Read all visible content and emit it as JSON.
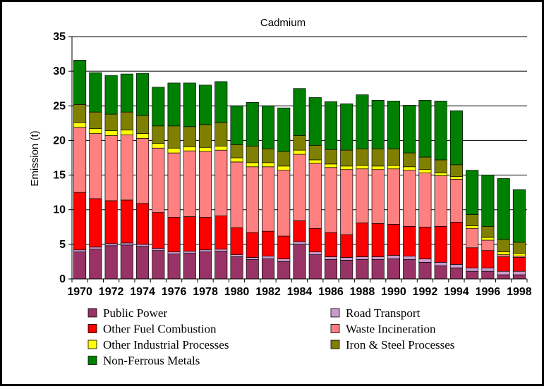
{
  "chart_data": {
    "type": "bar",
    "stacked": true,
    "title": "Cadmium",
    "ylabel": "Emission (t)",
    "xlabel": "",
    "ylim": [
      0,
      35
    ],
    "yticks": [
      0,
      5,
      10,
      15,
      20,
      25,
      30,
      35
    ],
    "grid": true,
    "legend_position": "bottom",
    "categories": [
      "1970",
      "1971",
      "1972",
      "1973",
      "1974",
      "1975",
      "1976",
      "1977",
      "1978",
      "1979",
      "1980",
      "1981",
      "1982",
      "1983",
      "1984",
      "1985",
      "1986",
      "1987",
      "1988",
      "1989",
      "1990",
      "1991",
      "1992",
      "1993",
      "1994",
      "1995",
      "1996",
      "1997",
      "1998"
    ],
    "x_tick_labels": [
      "1970",
      "1972",
      "1974",
      "1976",
      "1978",
      "1980",
      "1982",
      "1984",
      "1986",
      "1988",
      "1990",
      "1992",
      "1994",
      "1996",
      "1998"
    ],
    "series": [
      {
        "name": "Public Power",
        "color": "#993366",
        "values": [
          3.9,
          4.3,
          4.8,
          4.9,
          4.7,
          4.1,
          3.6,
          3.7,
          3.9,
          4.0,
          3.2,
          2.8,
          2.9,
          2.5,
          5.0,
          3.5,
          2.8,
          2.7,
          2.8,
          2.8,
          2.9,
          2.8,
          2.4,
          1.9,
          1.6,
          1.1,
          1.1,
          0.6,
          0.6
        ]
      },
      {
        "name": "Road Transport",
        "color": "#CC99CC",
        "values": [
          0.3,
          0.3,
          0.3,
          0.3,
          0.3,
          0.3,
          0.3,
          0.3,
          0.3,
          0.3,
          0.3,
          0.3,
          0.4,
          0.4,
          0.4,
          0.4,
          0.4,
          0.4,
          0.4,
          0.4,
          0.5,
          0.5,
          0.5,
          0.5,
          0.5,
          0.5,
          0.5,
          0.5,
          0.5
        ]
      },
      {
        "name": "Other Fuel Combustion",
        "color": "#FF0000",
        "values": [
          8.3,
          7.0,
          6.2,
          6.2,
          5.9,
          5.2,
          5.0,
          5.0,
          4.7,
          4.8,
          3.9,
          3.6,
          3.6,
          3.3,
          3.0,
          3.4,
          3.5,
          3.3,
          4.9,
          4.8,
          4.5,
          4.3,
          4.6,
          5.2,
          6.1,
          2.9,
          2.5,
          2.1,
          2.0
        ]
      },
      {
        "name": "Waste Incineration",
        "color": "#FF8080",
        "values": [
          9.4,
          9.4,
          9.4,
          9.4,
          9.4,
          9.3,
          9.3,
          9.5,
          9.5,
          9.5,
          9.5,
          9.5,
          9.3,
          9.5,
          9.6,
          9.4,
          9.4,
          9.4,
          7.8,
          7.8,
          8.0,
          8.1,
          7.8,
          7.3,
          6.2,
          2.8,
          1.5,
          0.3,
          0.2
        ]
      },
      {
        "name": "Other Industrial Processes",
        "color": "#FFFF00",
        "values": [
          0.7,
          0.7,
          0.7,
          0.7,
          0.7,
          0.7,
          0.7,
          0.6,
          0.6,
          0.6,
          0.6,
          0.6,
          0.6,
          0.6,
          0.6,
          0.5,
          0.5,
          0.5,
          0.5,
          0.5,
          0.5,
          0.5,
          0.5,
          0.4,
          0.4,
          0.4,
          0.4,
          0.4,
          0.4
        ]
      },
      {
        "name": "Iron & Steel Processes",
        "color": "#808000",
        "values": [
          2.6,
          2.4,
          2.4,
          2.6,
          2.6,
          2.5,
          3.2,
          2.9,
          3.3,
          3.4,
          1.9,
          2.4,
          2.0,
          2.1,
          2.1,
          2.1,
          2.1,
          2.3,
          2.4,
          2.5,
          2.4,
          2.0,
          1.8,
          1.9,
          1.7,
          1.6,
          1.6,
          1.8,
          1.6
        ]
      },
      {
        "name": "Non-Ferrous Metals",
        "color": "#008000",
        "values": [
          6.4,
          5.7,
          5.6,
          5.5,
          6.1,
          5.6,
          6.2,
          6.3,
          5.7,
          5.9,
          5.6,
          6.3,
          6.2,
          6.3,
          6.8,
          6.9,
          6.9,
          6.7,
          7.8,
          7.0,
          6.9,
          6.9,
          8.2,
          8.5,
          7.8,
          6.4,
          7.4,
          8.8,
          7.6
        ]
      }
    ]
  }
}
